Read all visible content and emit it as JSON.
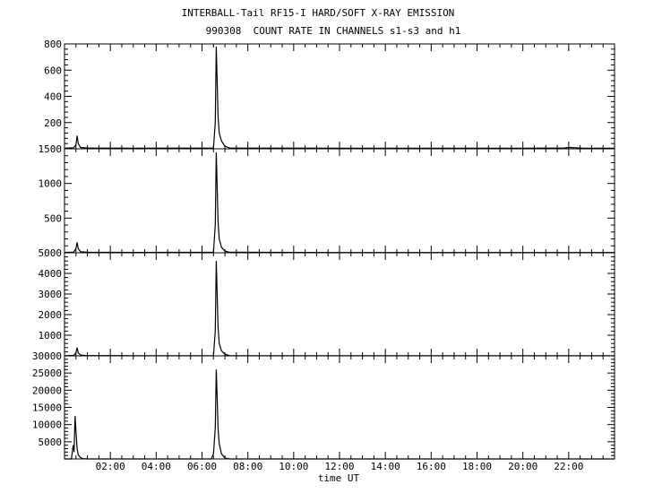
{
  "title_line1": "INTERBALL-Tail RF15-I HARD/SOFT X-RAY EMISSION",
  "title_line2": "990308  COUNT RATE IN CHANNELS s1-s3 and h1",
  "chart_data": [
    {
      "type": "line",
      "panel": 1,
      "xlabel": "time UT",
      "x_ticks": [
        "02:00",
        "04:00",
        "06:00",
        "08:00",
        "10:00",
        "12:00",
        "14:00",
        "16:00",
        "18:00",
        "20:00",
        "22:00"
      ],
      "xlim": [
        0,
        24
      ],
      "ylim": [
        0,
        800
      ],
      "y_ticks": [
        200,
        400,
        600,
        800
      ],
      "series": [
        {
          "x": [
            0,
            0.4,
            0.5,
            0.55,
            0.6,
            0.7,
            1.0,
            3.0,
            6.5,
            6.58,
            6.62,
            6.66,
            6.7,
            6.75,
            6.85,
            7.0,
            7.2,
            12.0,
            20.0,
            21.8,
            22.0,
            22.3,
            22.6,
            24.0
          ],
          "y": [
            5,
            8,
            30,
            100,
            40,
            10,
            6,
            5,
            6,
            200,
            780,
            520,
            250,
            120,
            60,
            20,
            6,
            4,
            4,
            6,
            10,
            8,
            5,
            4
          ]
        }
      ]
    },
    {
      "type": "line",
      "panel": 2,
      "xlim": [
        0,
        24
      ],
      "ylim": [
        0,
        1500
      ],
      "y_ticks": [
        500,
        1000,
        1500
      ],
      "series": [
        {
          "x": [
            0,
            0.4,
            0.5,
            0.55,
            0.6,
            0.7,
            1.0,
            3.0,
            6.5,
            6.58,
            6.62,
            6.66,
            6.7,
            6.75,
            6.85,
            7.0,
            7.2,
            12.0,
            24.0
          ],
          "y": [
            5,
            10,
            60,
            150,
            60,
            15,
            8,
            5,
            8,
            400,
            1450,
            950,
            450,
            200,
            80,
            25,
            8,
            4,
            4
          ]
        }
      ]
    },
    {
      "type": "line",
      "panel": 3,
      "xlim": [
        0,
        24
      ],
      "ylim": [
        0,
        5000
      ],
      "y_ticks": [
        1000,
        2000,
        3000,
        4000,
        5000
      ],
      "series": [
        {
          "x": [
            0,
            0.4,
            0.5,
            0.55,
            0.6,
            0.7,
            1.0,
            3.0,
            6.5,
            6.58,
            6.62,
            6.66,
            6.7,
            6.75,
            6.85,
            7.0,
            7.2,
            12.0,
            24.0
          ],
          "y": [
            10,
            20,
            150,
            400,
            150,
            40,
            15,
            10,
            15,
            1200,
            4600,
            3000,
            1400,
            600,
            250,
            80,
            15,
            8,
            8
          ]
        }
      ]
    },
    {
      "type": "line",
      "panel": 4,
      "xlim": [
        0,
        24
      ],
      "ylim": [
        0,
        30000
      ],
      "y_ticks": [
        5000,
        10000,
        15000,
        20000,
        25000,
        30000
      ],
      "series": [
        {
          "x": [
            0,
            0.3,
            0.38,
            0.42,
            0.46,
            0.5,
            0.55,
            0.6,
            0.7,
            0.8,
            1.0,
            3.0,
            6.4,
            6.5,
            6.58,
            6.62,
            6.66,
            6.7,
            6.75,
            6.85,
            7.0,
            7.2,
            12.0,
            24.0
          ],
          "y": [
            0,
            0,
            4000,
            2000,
            12500,
            8000,
            3000,
            1200,
            400,
            100,
            0,
            0,
            0,
            1500,
            9000,
            26000,
            18000,
            9000,
            4500,
            1500,
            300,
            0,
            0,
            0
          ]
        }
      ]
    }
  ]
}
